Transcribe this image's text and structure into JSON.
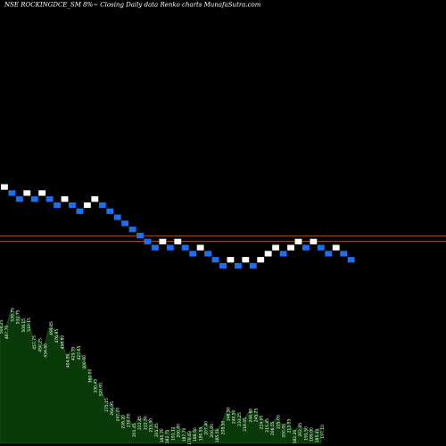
{
  "chart_data": [
    {
      "type": "renko",
      "title": "NSE ROCKINGDCE_SM 8%~  Closing Daily data  Renko  charts MunafaSutra.com",
      "brick_colors": {
        "up": "#ffffff",
        "down": "#1e6ff0"
      },
      "reference_lines": [
        {
          "color": "#c8641e"
        },
        {
          "color": "#c8641e"
        }
      ],
      "bricks": [
        "up",
        "down",
        "down",
        "up",
        "down",
        "up",
        "down",
        "down",
        "up",
        "down",
        "down",
        "up",
        "up",
        "down",
        "down",
        "down",
        "down",
        "down",
        "down",
        "down",
        "down",
        "up",
        "down",
        "up",
        "down",
        "down",
        "up",
        "down",
        "down",
        "down",
        "up",
        "down",
        "up",
        "down",
        "up",
        "up",
        "up",
        "down",
        "up",
        "up",
        "down",
        "up",
        "down",
        "down",
        "up",
        "down",
        "down"
      ]
    },
    {
      "type": "area",
      "area_color": "#0a3a0a",
      "line_color": "#1a6a1a",
      "tick_labels": [
        "504.25",
        "487.70",
        "539.75",
        "532.75",
        "508.15",
        "510.15",
        "457.75",
        "450.25",
        "434.60",
        "499.45",
        "476.95",
        "458.80",
        "404.80",
        "425.75",
        "427.65",
        "400.60",
        "360.00",
        "330.45",
        "320.00",
        "275.15",
        "264.95",
        "247.20",
        "226.20",
        "230.00",
        "201.45",
        "222.45",
        "222.50",
        "215.50",
        "201.45",
        "185.70",
        "182.75",
        "191.12",
        "200.00",
        "187.70",
        "178.63",
        "188.50",
        "190.55",
        "207.40",
        "200.00",
        "185.50",
        "208.50",
        "248.50",
        "240.50",
        "233.25",
        "218.05",
        "244.60",
        "245.25",
        "224.00",
        "215.45",
        "206.55",
        "225.00",
        "200.00",
        "213.55",
        "182.20",
        "202.45",
        "191.50",
        "189.00",
        "185.45",
        "197.10"
      ],
      "values": [
        504.25,
        487.7,
        539.75,
        532.75,
        508.15,
        510.15,
        457.75,
        450.25,
        434.6,
        499.45,
        476.95,
        458.8,
        404.8,
        425.75,
        427.65,
        400.6,
        360,
        330.45,
        320,
        275.15,
        264.95,
        247.2,
        226.2,
        230,
        201.45,
        222.45,
        222.5,
        215.5,
        201.45,
        185.7,
        182.75,
        191.12,
        200,
        187.7,
        178.63,
        188.5,
        190.55,
        207.4,
        200,
        185.5,
        208.5,
        248.5,
        240.5,
        233.25,
        218.05,
        244.6,
        245.25,
        224,
        215.45,
        206.55,
        225,
        200,
        213.55,
        182.2,
        202.45,
        191.5,
        189,
        185.45,
        197.1
      ]
    }
  ]
}
